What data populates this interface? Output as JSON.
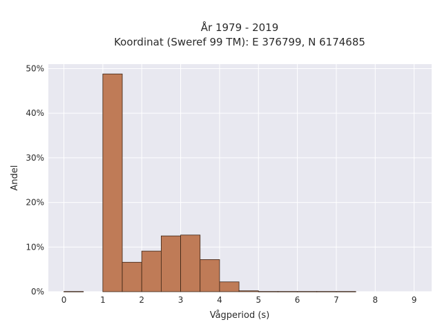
{
  "chart_data": {
    "type": "bar",
    "title_line1": "År 1979 - 2019",
    "title_line2": "Koordinat (Sweref 99 TM): E 376799, N 6174685",
    "xlabel": "Vågperiod (s)",
    "ylabel": "Andel",
    "xlim": [
      -0.4,
      9.45
    ],
    "ylim": [
      0,
      51
    ],
    "bin_width": 0.5,
    "bins": [
      {
        "x0": 0.0,
        "value": 0.05
      },
      {
        "x0": 0.5,
        "value": 0.0
      },
      {
        "x0": 1.0,
        "value": 48.8
      },
      {
        "x0": 1.5,
        "value": 6.6
      },
      {
        "x0": 2.0,
        "value": 9.1
      },
      {
        "x0": 2.5,
        "value": 12.5
      },
      {
        "x0": 3.0,
        "value": 12.7
      },
      {
        "x0": 3.5,
        "value": 7.2
      },
      {
        "x0": 4.0,
        "value": 2.2
      },
      {
        "x0": 4.5,
        "value": 0.2
      },
      {
        "x0": 5.0,
        "value": 0.05
      },
      {
        "x0": 5.5,
        "value": 0.05
      },
      {
        "x0": 6.0,
        "value": 0.05
      },
      {
        "x0": 6.5,
        "value": 0.05
      },
      {
        "x0": 7.0,
        "value": 0.05
      }
    ],
    "x_ticks": [
      {
        "value": 0,
        "label": "0"
      },
      {
        "value": 1,
        "label": "1"
      },
      {
        "value": 2,
        "label": "2"
      },
      {
        "value": 3,
        "label": "3"
      },
      {
        "value": 4,
        "label": "4"
      },
      {
        "value": 5,
        "label": "5"
      },
      {
        "value": 6,
        "label": "6"
      },
      {
        "value": 7,
        "label": "7"
      },
      {
        "value": 8,
        "label": "8"
      },
      {
        "value": 9,
        "label": "9"
      }
    ],
    "y_ticks": [
      {
        "value": 0,
        "label": "0%"
      },
      {
        "value": 10,
        "label": "10%"
      },
      {
        "value": 20,
        "label": "20%"
      },
      {
        "value": 30,
        "label": "30%"
      },
      {
        "value": 40,
        "label": "40%"
      },
      {
        "value": 50,
        "label": "50%"
      }
    ],
    "grid": true,
    "colors": {
      "bar": "#bf7b57",
      "plot_background": "#e8e8f0",
      "grid": "#ffffff"
    }
  }
}
